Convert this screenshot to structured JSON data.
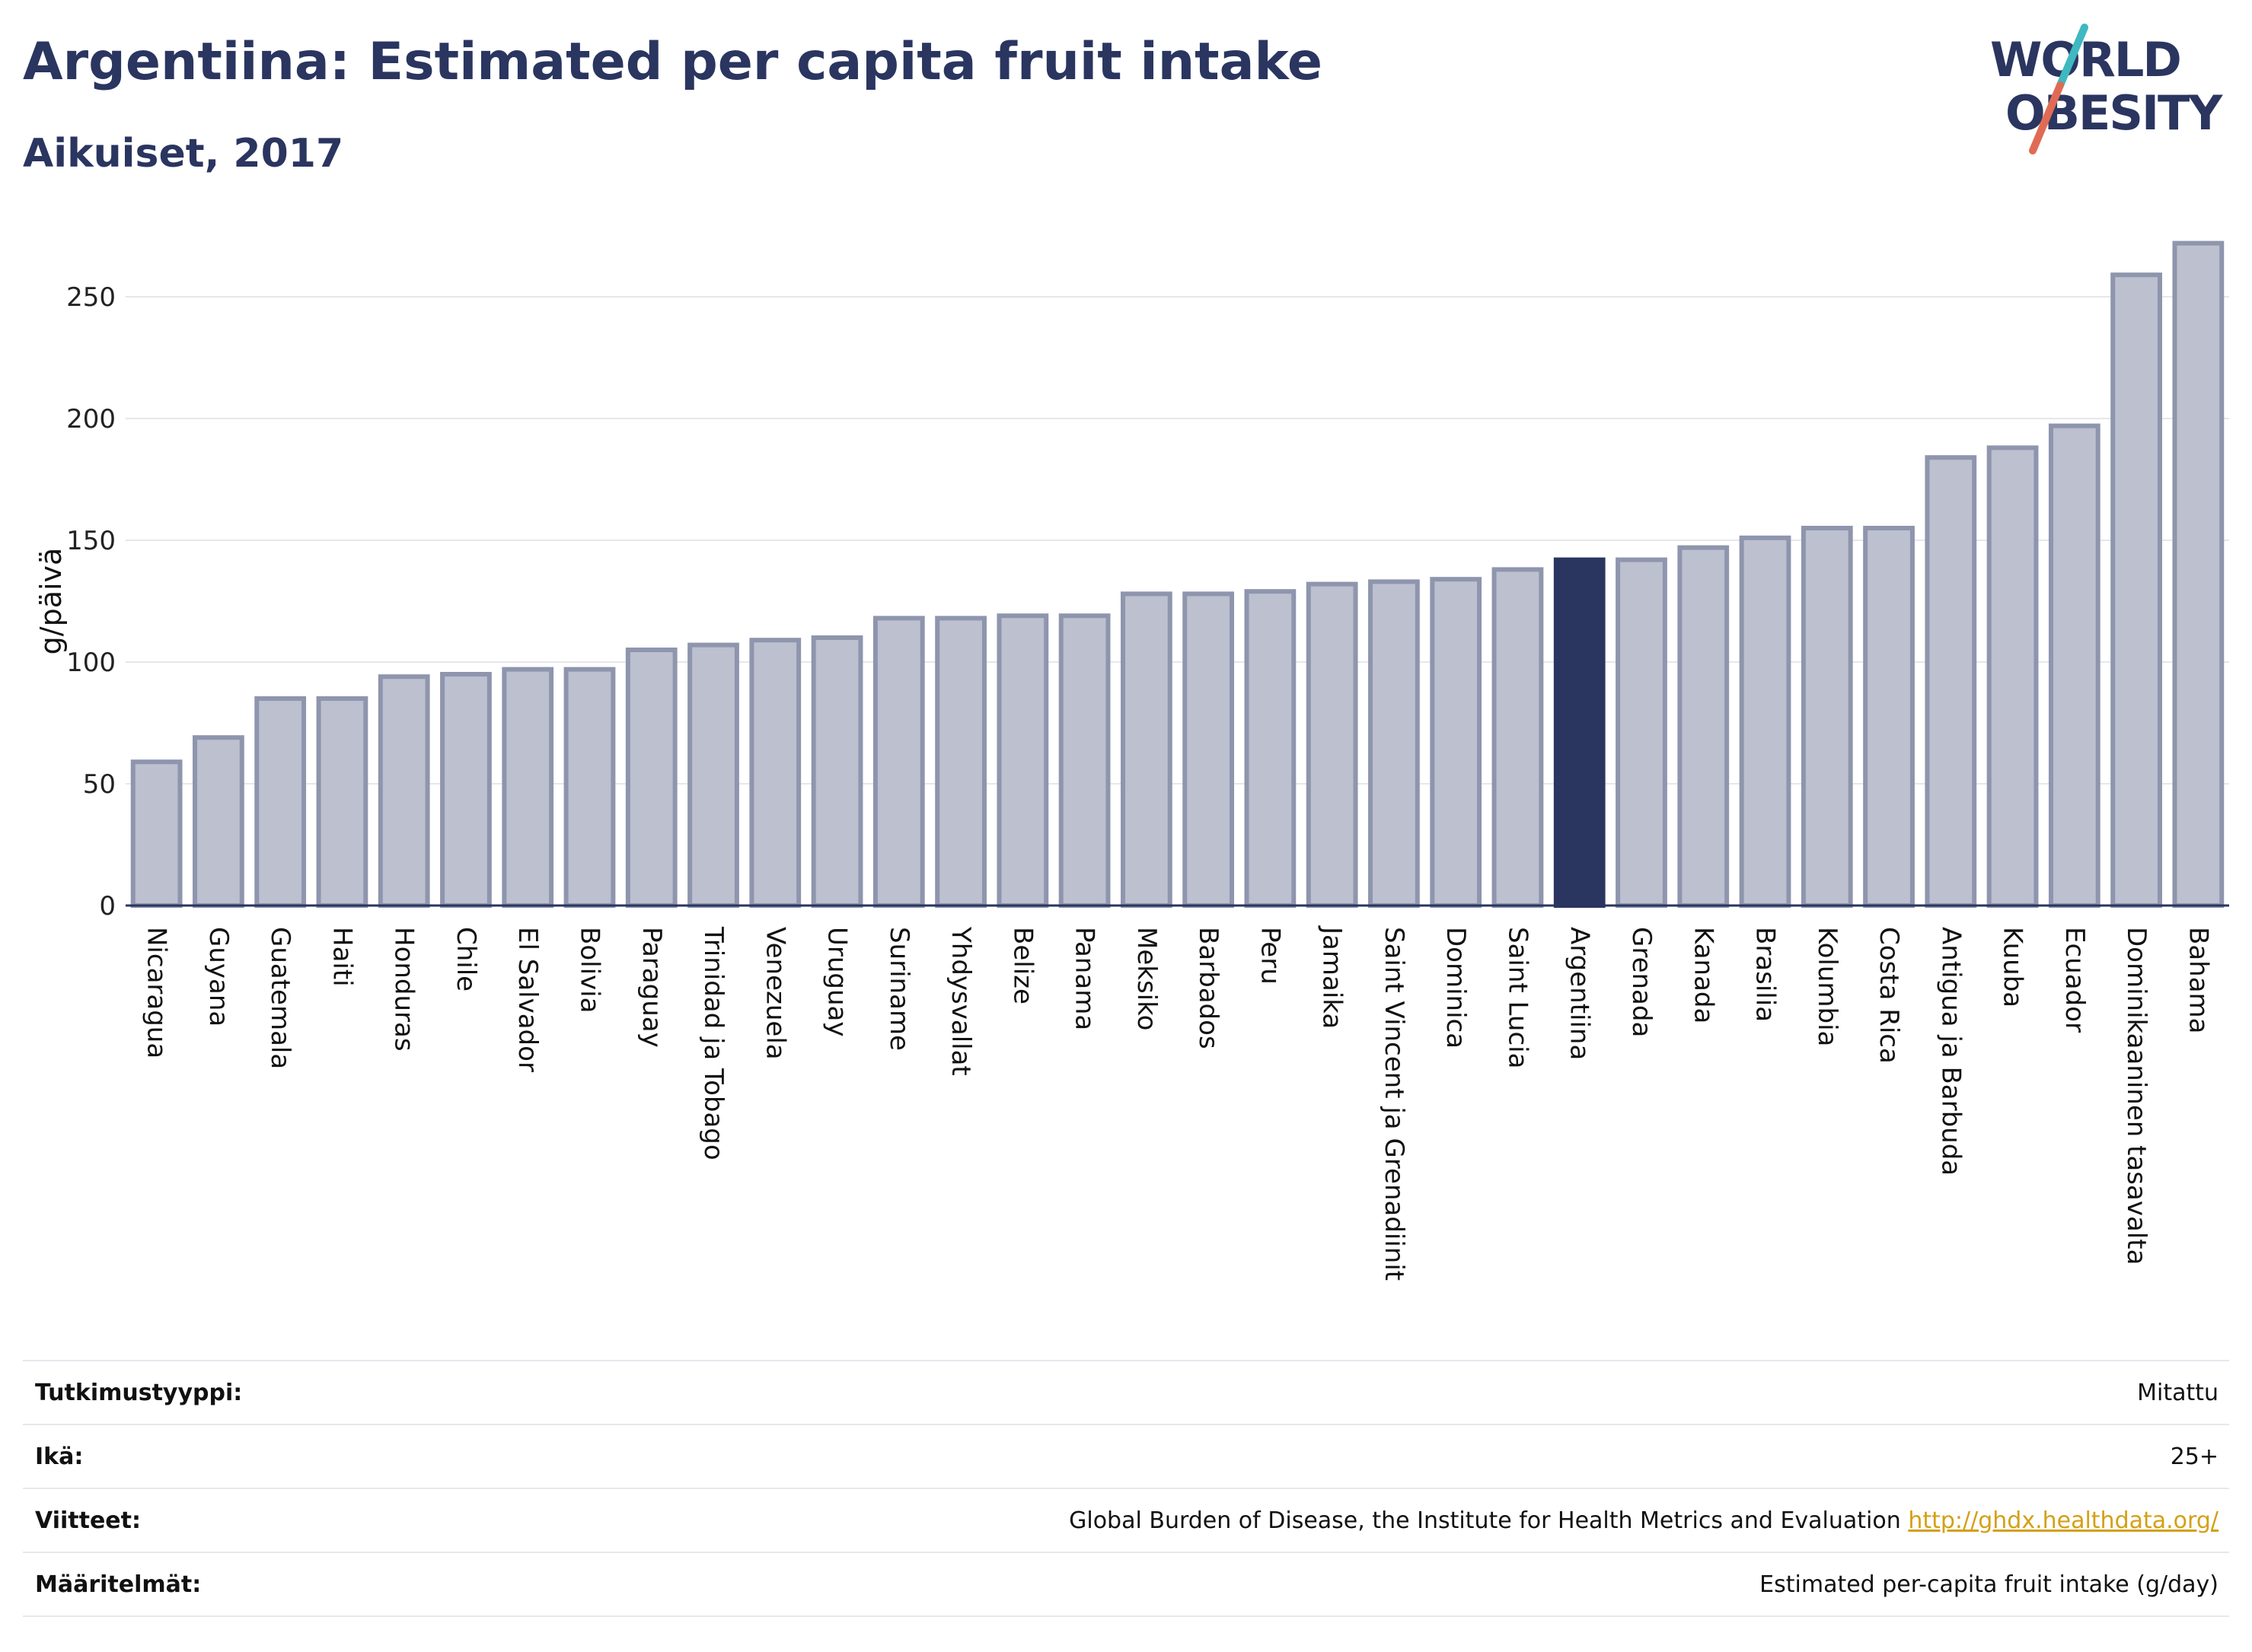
{
  "header": {
    "title": "Argentiina: Estimated per capita fruit intake",
    "subtitle": "Aikuiset, 2017"
  },
  "logo": {
    "line1": "WORLD",
    "line2": "OBESITY",
    "colors": {
      "text": "#2a3560",
      "slash_teal": "#3fb8c0",
      "slash_coral": "#e06b55"
    }
  },
  "chart_data": {
    "type": "bar",
    "ylabel": "g/päivä",
    "xlabel": "",
    "ylim": [
      0,
      275
    ],
    "yticks": [
      0,
      50,
      100,
      150,
      200,
      250
    ],
    "grid": true,
    "highlight": "Argentiina",
    "colors": {
      "bar": "#bcc0cf",
      "bar_border": "#8e95ad",
      "highlight": "#2a3560"
    },
    "categories": [
      "Nicaragua",
      "Guyana",
      "Guatemala",
      "Haiti",
      "Honduras",
      "Chile",
      "El Salvador",
      "Bolivia",
      "Paraguay",
      "Trinidad ja Tobago",
      "Venezuela",
      "Uruguay",
      "Suriname",
      "Yhdysvallat",
      "Belize",
      "Panama",
      "Meksiko",
      "Barbados",
      "Peru",
      "Jamaika",
      "Saint Vincent ja Grenadiinit",
      "Dominica",
      "Saint Lucia",
      "Argentiina",
      "Grenada",
      "Kanada",
      "Brasilia",
      "Kolumbia",
      "Costa Rica",
      "Antigua ja Barbuda",
      "Kuuba",
      "Ecuador",
      "Dominikaaninen tasavalta",
      "Bahama"
    ],
    "values": [
      59,
      69,
      85,
      85,
      94,
      95,
      97,
      97,
      105,
      107,
      109,
      110,
      118,
      118,
      119,
      119,
      128,
      128,
      129,
      132,
      133,
      134,
      138,
      142,
      142,
      147,
      151,
      155,
      155,
      184,
      188,
      197,
      259,
      272
    ]
  },
  "info": [
    {
      "label": "Tutkimustyyppi:",
      "value": "Mitattu"
    },
    {
      "label": "Ikä:",
      "value": "25+"
    },
    {
      "label": "Viitteet:",
      "value": "Global Burden of Disease, the Institute for Health Metrics and Evaluation",
      "link": "http://ghdx.healthdata.org/"
    },
    {
      "label": "Määritelmät:",
      "value": "Estimated per-capita fruit intake (g/day)"
    }
  ]
}
